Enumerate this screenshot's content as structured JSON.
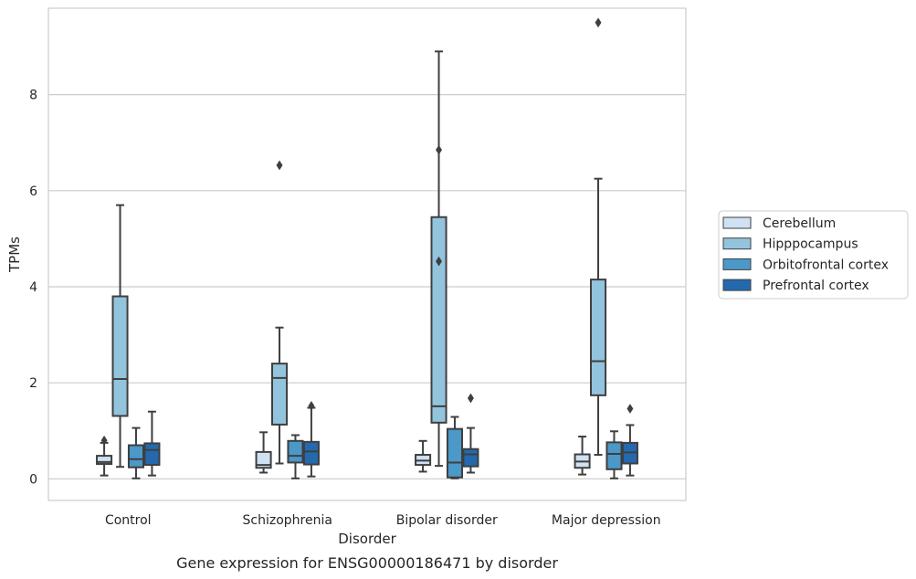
{
  "chart_data": {
    "type": "box",
    "title": "",
    "caption": "Gene expression for ENSG00000186471 by disorder",
    "xlabel": "Disorder",
    "ylabel": "TPMs",
    "categories": [
      "Control",
      "Schizophrenia",
      "Bipolar disorder",
      "Major depression"
    ],
    "yticks": [
      0,
      2,
      4,
      6,
      8
    ],
    "ylim": [
      -0.45,
      9.8
    ],
    "grid": "horizontal",
    "legend_placement": "right",
    "series": [
      {
        "name": "Cerebellum",
        "color": "#cfe1f2",
        "boxes": [
          {
            "whislo": 0.07,
            "q1": 0.31,
            "med": 0.35,
            "q3": 0.48,
            "whishi": 0.75,
            "fliers": [
              0.8
            ]
          },
          {
            "whislo": 0.13,
            "q1": 0.23,
            "med": 0.29,
            "q3": 0.56,
            "whishi": 0.97,
            "fliers": []
          },
          {
            "whislo": 0.15,
            "q1": 0.29,
            "med": 0.38,
            "q3": 0.5,
            "whishi": 0.79,
            "fliers": []
          },
          {
            "whislo": 0.09,
            "q1": 0.23,
            "med": 0.36,
            "q3": 0.51,
            "whishi": 0.88,
            "fliers": []
          }
        ]
      },
      {
        "name": "Hipppocampus",
        "color": "#93c4de",
        "boxes": [
          {
            "whislo": 0.25,
            "q1": 1.31,
            "med": 2.08,
            "q3": 3.8,
            "whishi": 5.7,
            "fliers": []
          },
          {
            "whislo": 0.32,
            "q1": 1.13,
            "med": 2.1,
            "q3": 2.4,
            "whishi": 3.15,
            "fliers": [
              6.53
            ]
          },
          {
            "whislo": 0.27,
            "q1": 1.17,
            "med": 1.51,
            "q3": 5.45,
            "whishi": 8.9,
            "fliers": [
              4.53,
              6.85
            ]
          },
          {
            "whislo": 0.5,
            "q1": 1.74,
            "med": 2.45,
            "q3": 4.15,
            "whishi": 6.25,
            "fliers": [
              9.5
            ]
          }
        ]
      },
      {
        "name": "Orbitofrontal cortex",
        "color": "#4b98c9",
        "boxes": [
          {
            "whislo": 0.01,
            "q1": 0.24,
            "med": 0.41,
            "q3": 0.7,
            "whishi": 1.06,
            "fliers": []
          },
          {
            "whislo": 0.01,
            "q1": 0.34,
            "med": 0.48,
            "q3": 0.79,
            "whishi": 0.91,
            "fliers": []
          },
          {
            "whislo": 0.01,
            "q1": 0.03,
            "med": 0.34,
            "q3": 1.04,
            "whishi": 1.29,
            "fliers": []
          },
          {
            "whislo": 0.01,
            "q1": 0.2,
            "med": 0.52,
            "q3": 0.76,
            "whishi": 0.99,
            "fliers": []
          }
        ]
      },
      {
        "name": "Prefrontal cortex",
        "color": "#2469ae",
        "boxes": [
          {
            "whislo": 0.07,
            "q1": 0.29,
            "med": 0.6,
            "q3": 0.74,
            "whishi": 1.4,
            "fliers": []
          },
          {
            "whislo": 0.05,
            "q1": 0.3,
            "med": 0.57,
            "q3": 0.77,
            "whishi": 1.48,
            "fliers": [
              1.52
            ]
          },
          {
            "whislo": 0.13,
            "q1": 0.26,
            "med": 0.51,
            "q3": 0.62,
            "whishi": 1.06,
            "fliers": [
              1.68
            ]
          },
          {
            "whislo": 0.07,
            "q1": 0.32,
            "med": 0.55,
            "q3": 0.75,
            "whishi": 1.12,
            "fliers": [
              1.46
            ]
          }
        ]
      }
    ]
  }
}
